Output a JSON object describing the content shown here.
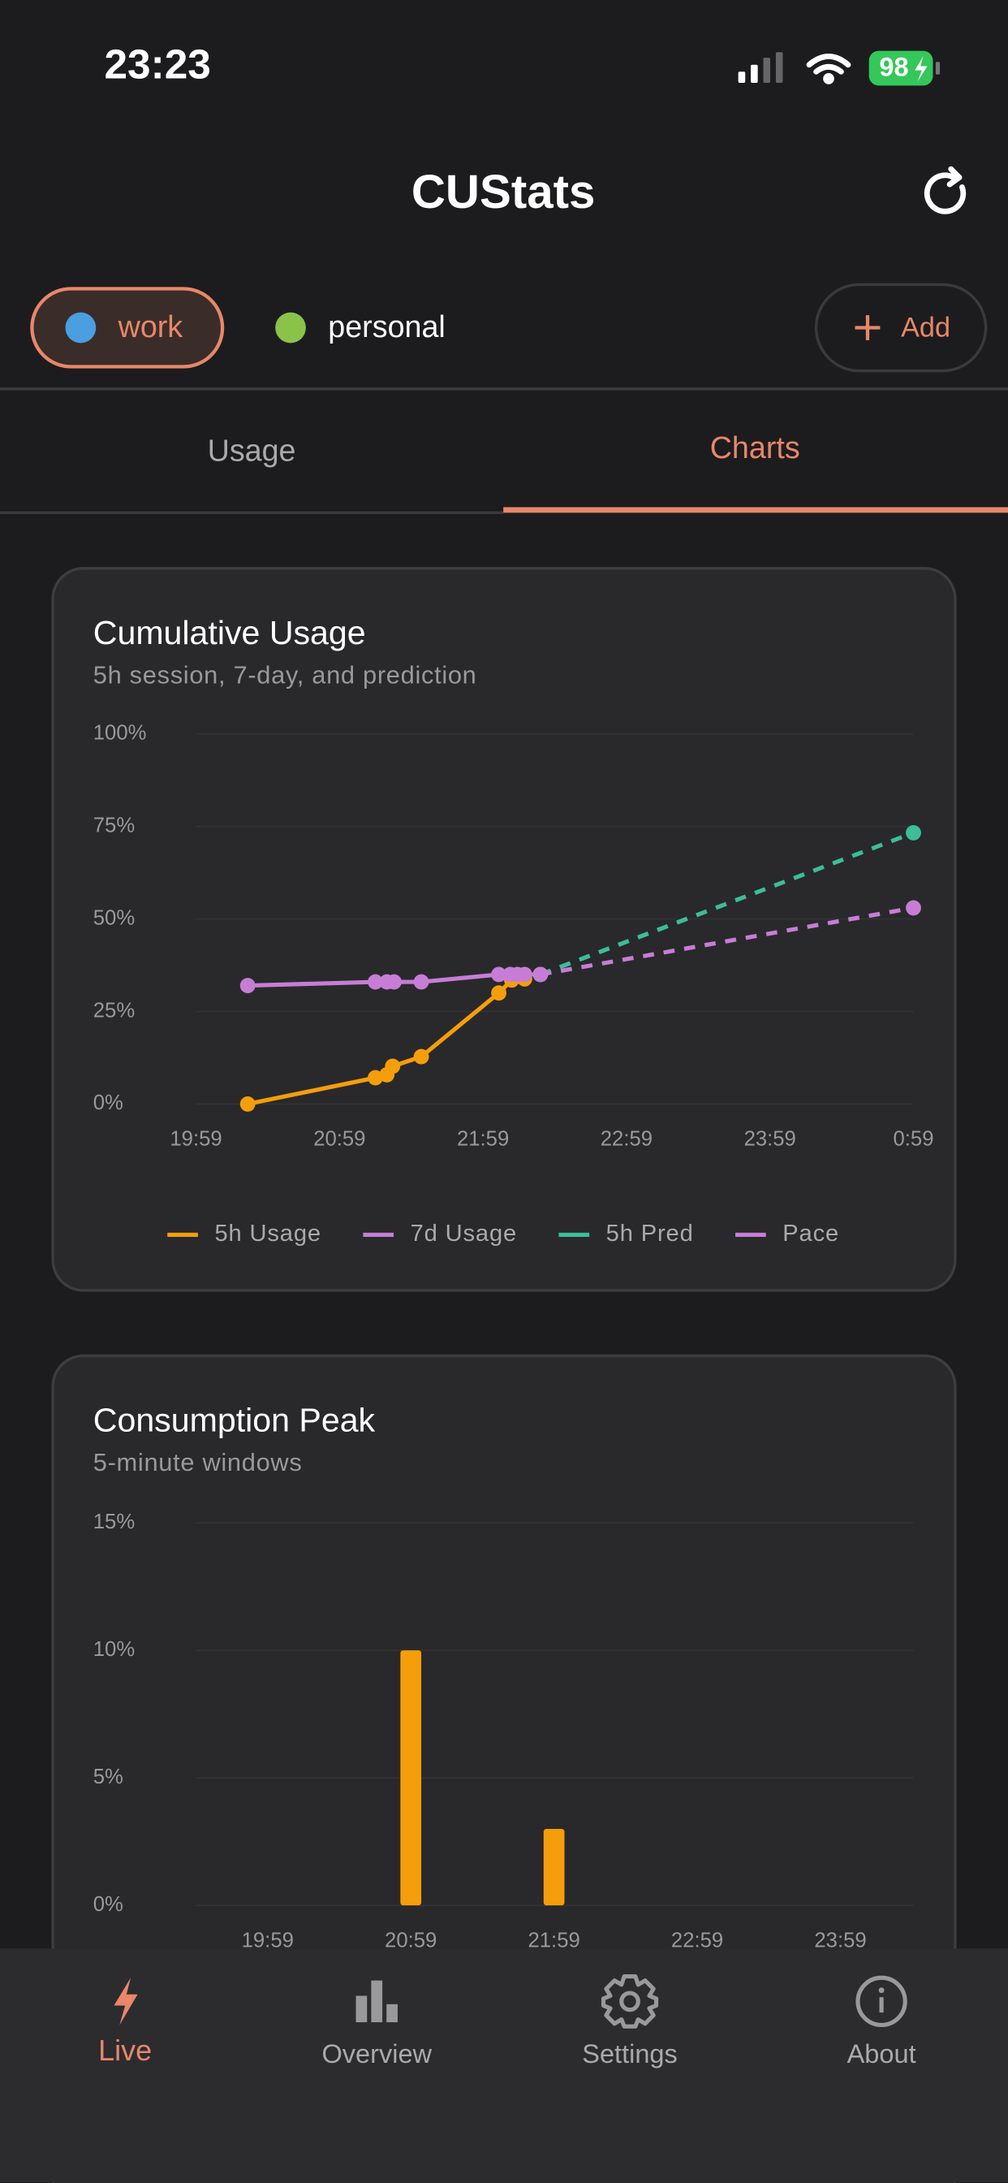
{
  "status_bar": {
    "time": "23:23",
    "battery": "98"
  },
  "header": {
    "title": "CUStats"
  },
  "accounts": [
    {
      "label": "work"
    },
    {
      "label": "personal"
    }
  ],
  "add_button": "Add",
  "tabs": [
    "Usage",
    "Charts"
  ],
  "chart_data": [
    {
      "type": "line",
      "title": "Cumulative Usage",
      "subtitle": "5h session, 7-day, and prediction",
      "series": [
        {
          "name": "5h Usage",
          "color": "#f59e0b",
          "dashed": false,
          "x": [
            20.34,
            21.23,
            21.31,
            21.35,
            21.55,
            22.09,
            22.18,
            22.27
          ],
          "values": [
            0,
            7.1,
            7.9,
            10.2,
            12.8,
            30,
            33.5,
            33.8
          ]
        },
        {
          "name": "7d Usage",
          "color": "#c77dd6",
          "dashed": false,
          "x": [
            20.34,
            21.23,
            21.31,
            21.36,
            21.55,
            22.09,
            22.17,
            22.22,
            22.27,
            22.38
          ],
          "values": [
            32,
            33,
            33,
            33,
            33,
            35,
            35,
            35,
            35,
            35
          ]
        },
        {
          "name": "5h Pred",
          "color": "#3dbd98",
          "dashed": true,
          "x": [
            22.38,
            24.98
          ],
          "values": [
            35,
            73.3
          ]
        },
        {
          "name": "Pace",
          "color": "#c77dd6",
          "dashed": true,
          "x": [
            22.38,
            24.98
          ],
          "values": [
            35,
            53
          ]
        }
      ],
      "xlim": [
        19.98,
        24.98
      ],
      "xticks": [
        {
          "value": 19.98,
          "label": "19:59"
        },
        {
          "value": 20.98,
          "label": "20:59"
        },
        {
          "value": 21.98,
          "label": "21:59"
        },
        {
          "value": 22.98,
          "label": "22:59"
        },
        {
          "value": 23.98,
          "label": "23:59"
        },
        {
          "value": 24.98,
          "label": "0:59"
        }
      ],
      "ylim": [
        0,
        100
      ],
      "yticks": [
        {
          "value": 0,
          "label": "0%"
        },
        {
          "value": 25,
          "label": "25%"
        },
        {
          "value": 50,
          "label": "50%"
        },
        {
          "value": 75,
          "label": "75%"
        },
        {
          "value": 100,
          "label": "100%"
        }
      ],
      "grid": true,
      "legend": "bottom"
    },
    {
      "type": "bar",
      "title": "Consumption Peak",
      "subtitle": "5-minute windows",
      "x": [
        20.98,
        21.98
      ],
      "values": [
        10,
        3
      ],
      "color": "#f59e0b",
      "xlim": [
        19.48,
        24.49
      ],
      "xticks": [
        {
          "value": 19.98,
          "label": "19:59"
        },
        {
          "value": 20.98,
          "label": "20:59"
        },
        {
          "value": 21.98,
          "label": "21:59"
        },
        {
          "value": 22.98,
          "label": "22:59"
        },
        {
          "value": 23.98,
          "label": "23:59"
        }
      ],
      "ylim": [
        0,
        15
      ],
      "yticks": [
        {
          "value": 0,
          "label": "0%"
        },
        {
          "value": 5,
          "label": "5%"
        },
        {
          "value": 10,
          "label": "10%"
        },
        {
          "value": 15,
          "label": "15%"
        }
      ],
      "grid": true
    }
  ],
  "nav": [
    "Live",
    "Overview",
    "Settings",
    "About"
  ]
}
